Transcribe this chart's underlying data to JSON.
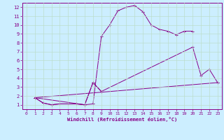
{
  "xlabel": "Windchill (Refroidissement éolien,°C)",
  "background_color": "#cceeff",
  "grid_color": "#bbddcc",
  "line_color": "#880088",
  "x_ticks": [
    0,
    1,
    2,
    3,
    4,
    5,
    6,
    7,
    8,
    9,
    10,
    11,
    12,
    13,
    14,
    15,
    16,
    17,
    18,
    19,
    20,
    21,
    22,
    23
  ],
  "y_ticks": [
    1,
    2,
    3,
    4,
    5,
    6,
    7,
    8,
    9,
    10,
    11,
    12
  ],
  "xlim": [
    -0.5,
    23.5
  ],
  "ylim": [
    0.5,
    12.5
  ],
  "series1_x": [
    1,
    2,
    3,
    4,
    5,
    6,
    7,
    8,
    9,
    10,
    11,
    12,
    13,
    14,
    15,
    16,
    17,
    18,
    19,
    20
  ],
  "series1_y": [
    1.8,
    1.2,
    1.0,
    1.1,
    1.1,
    1.1,
    1.0,
    1.1,
    8.7,
    10.0,
    11.6,
    12.0,
    12.2,
    11.5,
    10.0,
    9.5,
    9.3,
    8.9,
    9.3,
    9.3
  ],
  "series2_x": [
    1,
    2,
    3,
    4,
    5,
    6,
    7,
    8,
    9
  ],
  "series2_y": [
    1.8,
    1.2,
    1.0,
    1.1,
    1.1,
    1.1,
    1.0,
    3.5,
    2.5
  ],
  "series3_x": [
    1,
    7,
    8,
    9,
    20,
    21,
    22,
    23
  ],
  "series3_y": [
    1.8,
    1.0,
    3.5,
    2.5,
    7.5,
    4.3,
    5.0,
    3.5
  ],
  "series4_x": [
    1,
    23
  ],
  "series4_y": [
    1.8,
    3.5
  ]
}
